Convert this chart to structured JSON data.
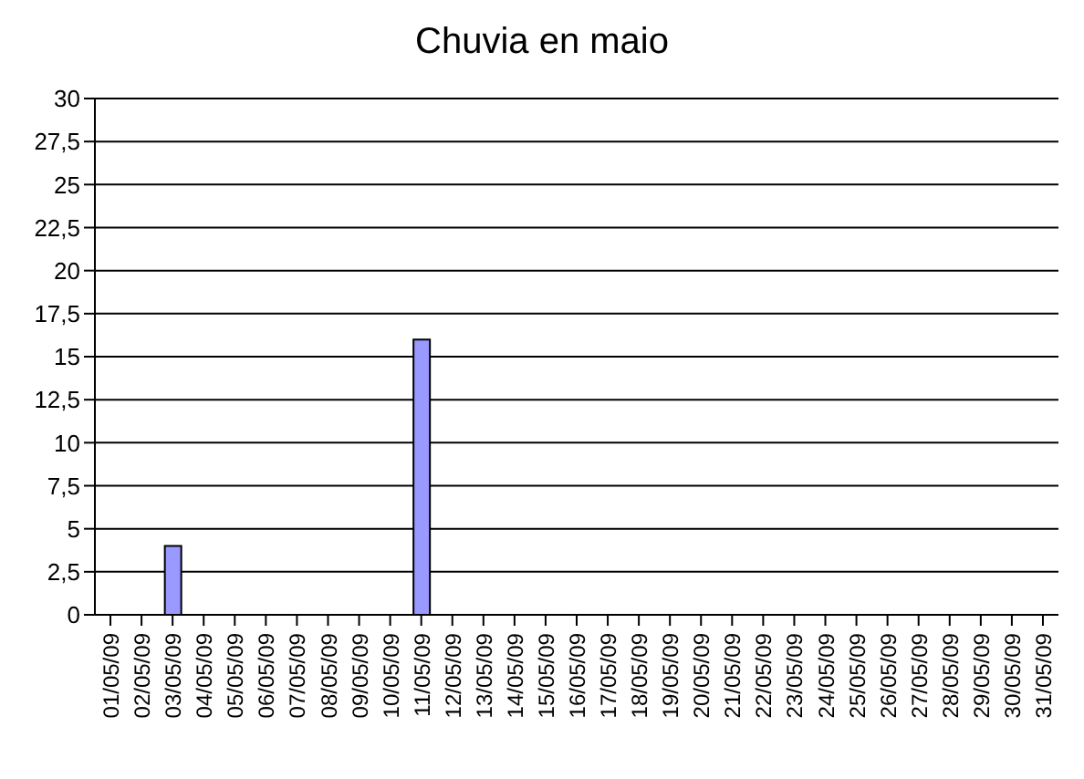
{
  "chart_data": {
    "type": "bar",
    "title": "Chuvia en maio",
    "categories": [
      "01/05/09",
      "02/05/09",
      "03/05/09",
      "04/05/09",
      "05/05/09",
      "06/05/09",
      "07/05/09",
      "08/05/09",
      "09/05/09",
      "10/05/09",
      "11/05/09",
      "12/05/09",
      "13/05/09",
      "14/05/09",
      "15/05/09",
      "16/05/09",
      "17/05/09",
      "18/05/09",
      "19/05/09",
      "20/05/09",
      "21/05/09",
      "22/05/09",
      "23/05/09",
      "24/05/09",
      "25/05/09",
      "26/05/09",
      "27/05/09",
      "28/05/09",
      "29/05/09",
      "30/05/09",
      "31/05/09"
    ],
    "values": [
      0,
      0,
      4,
      0,
      0,
      0,
      0,
      0,
      0,
      0,
      16,
      0,
      0,
      0,
      0,
      0,
      0,
      0,
      0,
      0,
      0,
      0,
      0,
      0,
      0,
      0,
      0,
      0,
      0,
      0,
      0
    ],
    "color": "#9999ff",
    "ylim": [
      0,
      30
    ],
    "yticks": [
      0,
      {
        "value": 2.5,
        "label": "2,5"
      },
      5,
      {
        "value": 7.5,
        "label": "7,5"
      },
      10,
      {
        "value": 12.5,
        "label": "12,5"
      },
      15,
      {
        "value": 17.5,
        "label": "17,5"
      },
      20,
      {
        "value": 22.5,
        "label": "22,5"
      },
      25,
      {
        "value": 27.5,
        "label": "27,5"
      },
      30
    ],
    "grid": "y",
    "legend": false
  }
}
